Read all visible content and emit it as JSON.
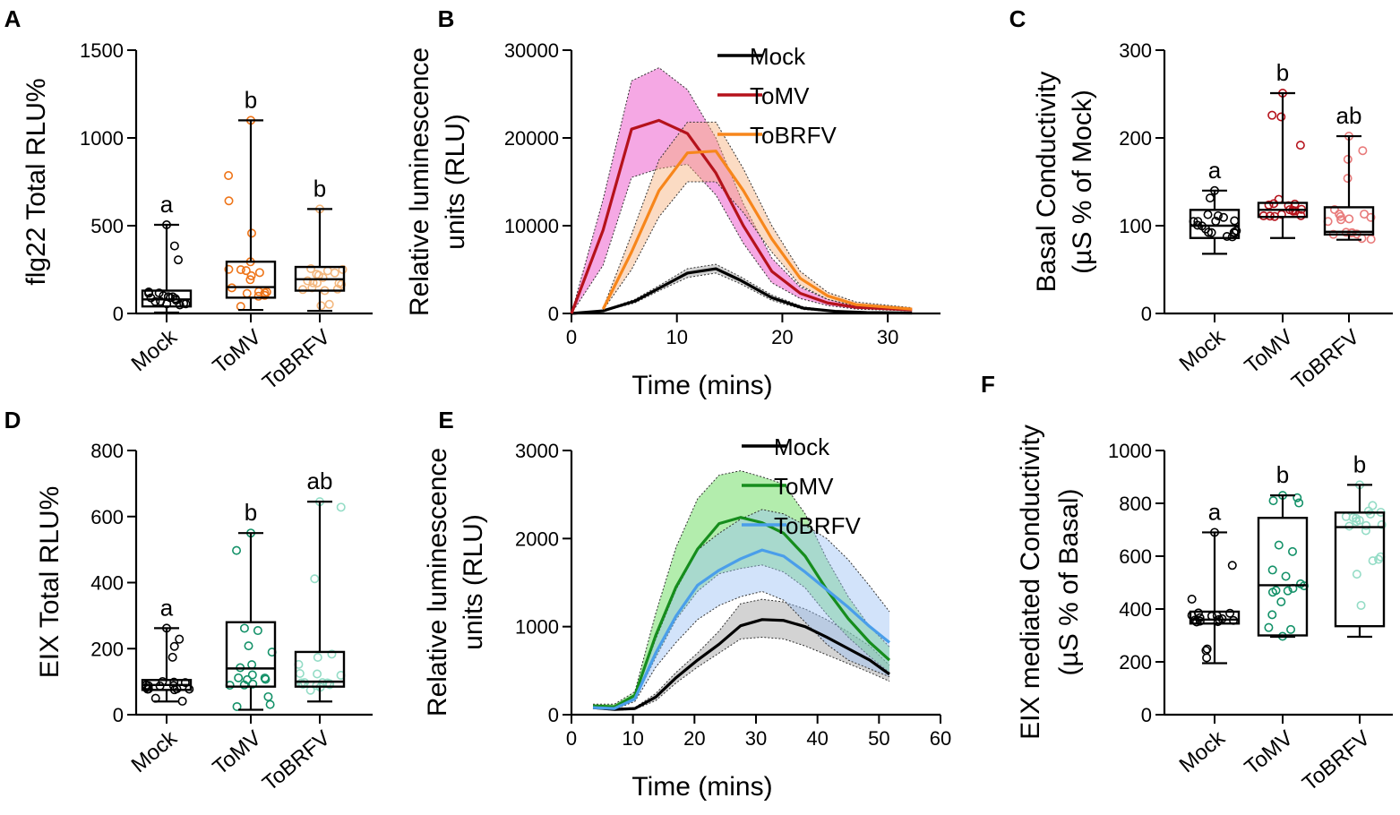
{
  "chart_data": [
    {
      "panel": "A",
      "type": "box",
      "ylabel": "flg22 Total RLU%",
      "yticks": [
        0,
        500,
        1000,
        1500
      ],
      "ylim": [
        0,
        1500
      ],
      "categories": [
        "Mock",
        "ToMV",
        "ToBRFV"
      ],
      "colors": [
        "#000000",
        "#ee7418",
        "#f3b77e"
      ],
      "letters": [
        "a",
        "b",
        "b"
      ],
      "boxes": [
        {
          "min": 5,
          "q1": 40,
          "median": 80,
          "q3": 130,
          "max": 505
        },
        {
          "min": 20,
          "q1": 90,
          "median": 150,
          "q3": 295,
          "max": 1100
        },
        {
          "min": 15,
          "q1": 130,
          "median": 195,
          "q3": 265,
          "max": 595
        }
      ]
    },
    {
      "panel": "B",
      "type": "line",
      "xlabel": "Time (mins)",
      "ylabel": "Relative luminescence units (RLU)",
      "xlim": [
        0,
        35
      ],
      "ylim": [
        0,
        30000
      ],
      "xticks": [
        0,
        10,
        20,
        30
      ],
      "yticks": [
        0,
        10000,
        20000,
        30000
      ],
      "legend": "top-right",
      "series": [
        {
          "name": "Mock",
          "color": "#000000",
          "band": "#9e9e9e",
          "x": [
            0,
            3,
            6,
            8.5,
            11,
            13.7,
            16,
            19,
            22,
            25,
            28,
            32.3
          ],
          "y": [
            0,
            300,
            1400,
            3000,
            4600,
            5100,
            3800,
            1800,
            600,
            250,
            100,
            50
          ],
          "lo": [
            0,
            250,
            1200,
            2700,
            4100,
            4600,
            3400,
            1500,
            450,
            200,
            80,
            40
          ],
          "hi": [
            0,
            350,
            1600,
            3300,
            5100,
            5600,
            4200,
            2100,
            750,
            300,
            120,
            60
          ]
        },
        {
          "name": "ToMV",
          "color": "#b5121b",
          "band": "#e83fc4",
          "x": [
            0,
            3,
            5.7,
            8.3,
            11,
            13.7,
            16.3,
            19,
            21.7,
            24.3,
            27,
            32.3
          ],
          "y": [
            0,
            9500,
            21000,
            22000,
            20500,
            16000,
            10000,
            4800,
            2300,
            1200,
            700,
            400
          ],
          "lo": [
            0,
            5500,
            15500,
            16500,
            17000,
            13500,
            8000,
            3500,
            1700,
            900,
            500,
            300
          ],
          "hi": [
            0,
            13000,
            26500,
            28000,
            25500,
            20000,
            12500,
            6300,
            3000,
            1600,
            900,
            500
          ]
        },
        {
          "name": "ToBRFV",
          "color": "#f7861b",
          "band": "#f7b07a",
          "x": [
            3,
            5.7,
            8.3,
            11,
            13.7,
            16.3,
            19,
            21.7,
            24.3,
            27,
            32.3
          ],
          "y": [
            500,
            7000,
            14000,
            18300,
            18500,
            14000,
            8500,
            4000,
            2000,
            1000,
            500
          ],
          "lo": [
            400,
            5000,
            11000,
            15000,
            15000,
            11500,
            7000,
            3200,
            1600,
            800,
            400
          ],
          "hi": [
            600,
            9000,
            17500,
            21800,
            21800,
            16500,
            10000,
            4800,
            2400,
            1300,
            650
          ]
        }
      ]
    },
    {
      "panel": "C",
      "type": "box",
      "ylabel": "Basal Conductivity (µS % of Mock)",
      "yticks": [
        0,
        100,
        200,
        300
      ],
      "ylim": [
        0,
        300
      ],
      "categories": [
        "Mock",
        "ToMV",
        "ToBRFV"
      ],
      "colors": [
        "#000000",
        "#b5121b",
        "#e87a7a"
      ],
      "letters": [
        "a",
        "b",
        "ab"
      ],
      "boxes": [
        {
          "min": 68,
          "q1": 86,
          "median": 100,
          "q3": 118,
          "max": 140
        },
        {
          "min": 86,
          "q1": 110,
          "median": 118,
          "q3": 126,
          "max": 251
        },
        {
          "min": 84,
          "q1": 90,
          "median": 93,
          "q3": 121,
          "max": 202
        }
      ]
    },
    {
      "panel": "D",
      "type": "box",
      "ylabel": "EIX Total RLU%",
      "yticks": [
        0,
        200,
        400,
        600,
        800
      ],
      "ylim": [
        0,
        800
      ],
      "categories": [
        "Mock",
        "ToMV",
        "ToBRFV"
      ],
      "colors": [
        "#000000",
        "#139168",
        "#94dcc6"
      ],
      "letters": [
        "a",
        "b",
        "ab"
      ],
      "boxes": [
        {
          "min": 40,
          "q1": 75,
          "median": 90,
          "q3": 105,
          "max": 262
        },
        {
          "min": 15,
          "q1": 85,
          "median": 140,
          "q3": 280,
          "max": 550
        },
        {
          "min": 40,
          "q1": 85,
          "median": 100,
          "q3": 190,
          "max": 645
        }
      ]
    },
    {
      "panel": "E",
      "type": "line",
      "xlabel": "Time (mins)",
      "ylabel": "Relative luminescence units (RLU)",
      "xlim": [
        0,
        60
      ],
      "ylim": [
        0,
        3000
      ],
      "xticks": [
        0,
        10,
        20,
        30,
        40,
        50,
        60
      ],
      "yticks": [
        0,
        1000,
        2000,
        3000
      ],
      "legend": "top-right",
      "series": [
        {
          "name": "Mock",
          "color": "#000000",
          "band": "#9e9e9e",
          "x": [
            3.5,
            7,
            10.3,
            13.7,
            17,
            20.5,
            24,
            27.5,
            31,
            34.5,
            38,
            41.5,
            45,
            48.5,
            51.7
          ],
          "y": [
            80,
            60,
            70,
            200,
            420,
            620,
            800,
            1010,
            1080,
            1070,
            1000,
            880,
            750,
            620,
            460
          ],
          "lo": [
            70,
            50,
            60,
            160,
            360,
            540,
            700,
            860,
            880,
            860,
            780,
            680,
            580,
            480,
            380
          ],
          "hi": [
            90,
            70,
            80,
            240,
            480,
            700,
            950,
            1260,
            1310,
            1280,
            1200,
            1080,
            940,
            780,
            560
          ]
        },
        {
          "name": "ToMV",
          "color": "#168d1d",
          "band": "#56d84a",
          "x": [
            3.5,
            7,
            10.3,
            13.7,
            17,
            20.5,
            24,
            27.5,
            31,
            34.5,
            38,
            41.5,
            45,
            48.5,
            51.7
          ],
          "y": [
            100,
            90,
            220,
            900,
            1450,
            1880,
            2170,
            2240,
            2180,
            2060,
            1800,
            1420,
            1090,
            820,
            620
          ],
          "lo": [
            90,
            80,
            170,
            650,
            1080,
            1400,
            1600,
            1660,
            1700,
            1620,
            1440,
            1140,
            880,
            660,
            480
          ],
          "hi": [
            120,
            120,
            260,
            1150,
            1900,
            2450,
            2720,
            2770,
            2700,
            2620,
            2280,
            1770,
            1340,
            1000,
            770
          ]
        },
        {
          "name": "ToBRFV",
          "color": "#4a9eea",
          "band": "#9cc2f4",
          "x": [
            3.5,
            7,
            10.3,
            13.7,
            17,
            20.5,
            24,
            27.5,
            31,
            34.5,
            38,
            41.5,
            45,
            48.5,
            51.7
          ],
          "y": [
            80,
            70,
            180,
            700,
            1120,
            1470,
            1640,
            1770,
            1870,
            1800,
            1620,
            1420,
            1220,
            1000,
            820
          ],
          "lo": [
            70,
            60,
            150,
            540,
            820,
            1080,
            1240,
            1340,
            1400,
            1300,
            1050,
            800,
            620,
            520,
            430
          ],
          "hi": [
            90,
            80,
            210,
            860,
            1420,
            1870,
            2060,
            2220,
            2330,
            2280,
            2150,
            2000,
            1760,
            1460,
            1170
          ]
        }
      ]
    },
    {
      "panel": "F",
      "type": "box",
      "ylabel": "EIX mediated Conductivity (µS % of Basal)",
      "yticks": [
        0,
        200,
        400,
        600,
        800,
        1000
      ],
      "ylim": [
        0,
        1000
      ],
      "categories": [
        "Mock",
        "ToMV",
        "ToBRFV"
      ],
      "colors": [
        "#000000",
        "#139168",
        "#94dcc6"
      ],
      "letters": [
        "a",
        "b",
        "b"
      ],
      "boxes": [
        {
          "min": 195,
          "q1": 345,
          "median": 360,
          "q3": 390,
          "max": 690
        },
        {
          "min": 295,
          "q1": 300,
          "median": 490,
          "q3": 745,
          "max": 830
        },
        {
          "min": 295,
          "q1": 335,
          "median": 710,
          "q3": 765,
          "max": 870
        }
      ]
    }
  ]
}
